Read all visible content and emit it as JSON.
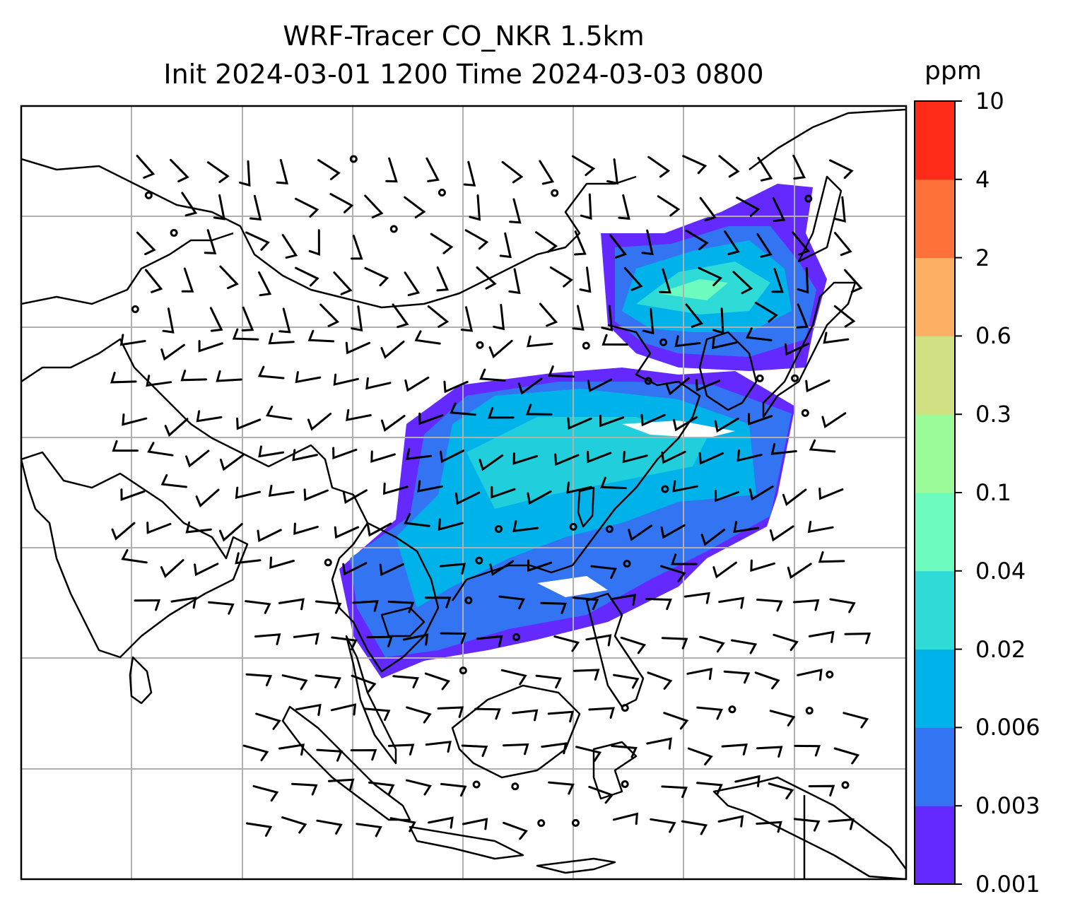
{
  "title": {
    "line1": "WRF-Tracer CO_NKR 1.5km",
    "line2": "Init 2024-03-01 1200 Time 2024-03-03 0800"
  },
  "colorbar": {
    "unit": "ppm",
    "ticks": [
      "0.001",
      "0.003",
      "0.006",
      "0.02",
      "0.04",
      "0.1",
      "0.3",
      "0.6",
      "2",
      "4",
      "10"
    ],
    "colors": [
      "#6429ff",
      "#3374f2",
      "#00b2ea",
      "#2fdbd6",
      "#6efbbf",
      "#9bfb98",
      "#d2e084",
      "#fdaf63",
      "#fe7139",
      "#fd2b17"
    ]
  },
  "map": {
    "background": "#ffffff",
    "coastline_color": "#000000",
    "grid_color": "#b0b0b0",
    "wind_barb_color": "#000000"
  }
}
